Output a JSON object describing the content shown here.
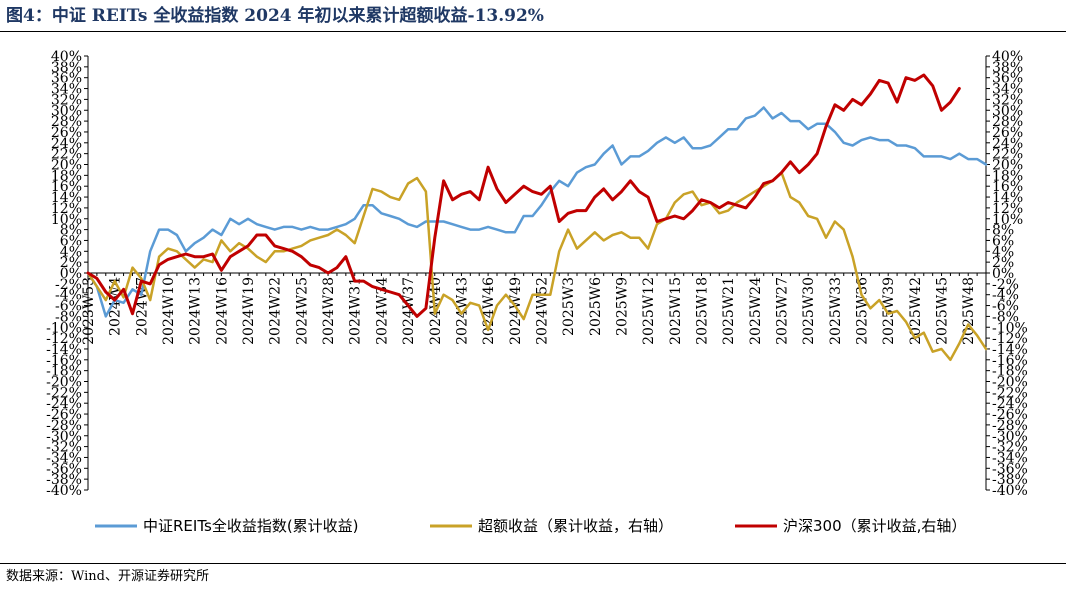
{
  "title": "图4：中证 REITs 全收益指数 2024 年初以来累计超额收益-13.92%",
  "source": "数据来源：Wind、开源证券研究所",
  "chart_data": {
    "type": "line",
    "x_tick_labels": [
      "2023W53",
      "2024W4",
      "2024W7",
      "2024W10",
      "2024W13",
      "2024W16",
      "2024W19",
      "2024W22",
      "2024W25",
      "2024W28",
      "2024W31",
      "2024W34",
      "2024W37",
      "2024W40",
      "2024W43",
      "2024W46",
      "2024W49",
      "2024W52",
      "2025W3",
      "2025W6",
      "2025W9",
      "2025W12",
      "2025W15",
      "2025W18",
      "2025W21",
      "2025W24",
      "2025W27",
      "2025W30",
      "2025W33",
      "2025W36",
      "2025W39",
      "2025W42",
      "2025W45",
      "2025W48"
    ],
    "y_left": {
      "min": -40,
      "max": 40,
      "step": 2
    },
    "y_right": {
      "min": -40,
      "max": 40,
      "step": 2
    },
    "grid": false,
    "legend_position": "bottom",
    "series": [
      {
        "name": "中证REITs全收益指数(累计收益)",
        "color": "#5b9bd5",
        "axis": "left",
        "values": [
          0,
          -2.5,
          -8,
          -5,
          -5.5,
          -3,
          -4,
          4,
          8,
          8,
          7,
          4,
          5.5,
          6.5,
          8,
          7,
          10,
          9,
          10,
          9,
          8.5,
          8,
          8.5,
          8.5,
          8,
          8.5,
          8,
          8,
          8.5,
          9,
          10,
          12.5,
          12.5,
          11,
          10.5,
          10,
          9,
          8.5,
          9.5,
          9.5,
          9.5,
          9,
          8.5,
          8,
          8,
          8.5,
          8,
          7.5,
          7.5,
          10.5,
          10.5,
          12.5,
          15,
          17,
          16,
          18.5,
          19.5,
          20,
          22,
          23.5,
          20,
          21.5,
          21.5,
          22.5,
          24,
          25,
          24,
          25,
          23,
          23,
          23.5,
          25,
          26.5,
          26.5,
          28.5,
          29,
          30.5,
          28.5,
          29.5,
          28,
          28,
          26.5,
          27.5,
          27.5,
          26,
          24,
          23.5,
          24.5,
          25,
          24.5,
          24.5,
          23.5,
          23.5,
          23,
          21.5,
          21.5,
          21.5,
          21,
          22,
          21,
          21,
          20
        ]
      },
      {
        "name": "超额收益（累计收益，右轴）",
        "color": "#c9a227",
        "axis": "right",
        "values": [
          0,
          -2.5,
          -5,
          -1.5,
          -4.5,
          1,
          -1,
          -5,
          3,
          4.5,
          4,
          2.5,
          1,
          2.5,
          2,
          6,
          4,
          5.5,
          4.5,
          3,
          2,
          4,
          4,
          4.5,
          5,
          6,
          6.5,
          7,
          8,
          7,
          5.5,
          10.5,
          15.5,
          15,
          14,
          13.5,
          16.5,
          17.5,
          15,
          -7.5,
          -4,
          -5,
          -7.5,
          -5.5,
          -6,
          -10.5,
          -6,
          -4,
          -6,
          -8.5,
          -4,
          -4,
          -4,
          4,
          8,
          4.5,
          6,
          7.5,
          6,
          7,
          7.5,
          6.5,
          6.5,
          4.5,
          9,
          10,
          13,
          14.5,
          15,
          12.5,
          13,
          11,
          11.5,
          13,
          14,
          15,
          16,
          17,
          18.5,
          14,
          13,
          10.5,
          10,
          6.5,
          9.5,
          8,
          3,
          -4,
          -6.5,
          -5,
          -7.5,
          -7,
          -9,
          -12,
          -11,
          -14.5,
          -14,
          -16,
          -13,
          -9.5,
          -11.5,
          -14
        ]
      },
      {
        "name": "沪深300（累计收益,右轴）",
        "color": "#c00000",
        "axis": "right",
        "values": [
          0,
          -1,
          -3.5,
          -5,
          -3,
          -7.5,
          -1.5,
          -2,
          1.5,
          2.5,
          3,
          3.5,
          3,
          3,
          3.5,
          0.5,
          3,
          4,
          5,
          7,
          7,
          5,
          4.5,
          4,
          3,
          1.5,
          1,
          0,
          1,
          3,
          -1.5,
          -1.5,
          -2.5,
          -3,
          -3.5,
          -4,
          -6,
          -8,
          -6.5,
          6.5,
          17,
          13.5,
          14.5,
          15,
          13.5,
          19.5,
          15.5,
          13,
          14.5,
          16,
          15,
          14.5,
          16,
          9.5,
          11,
          11.5,
          11.5,
          14,
          15.5,
          13.5,
          15,
          17,
          15,
          14,
          9.5,
          10,
          10.5,
          10,
          11.5,
          13.5,
          13,
          12,
          13,
          12.5,
          12,
          14,
          16.5,
          17,
          18.5,
          20.5,
          18.5,
          20,
          22,
          27,
          31,
          30,
          32,
          31,
          33,
          35.5,
          35,
          31.5,
          36,
          35.5,
          36.5,
          34.5,
          30,
          31.5,
          34
        ]
      }
    ]
  }
}
